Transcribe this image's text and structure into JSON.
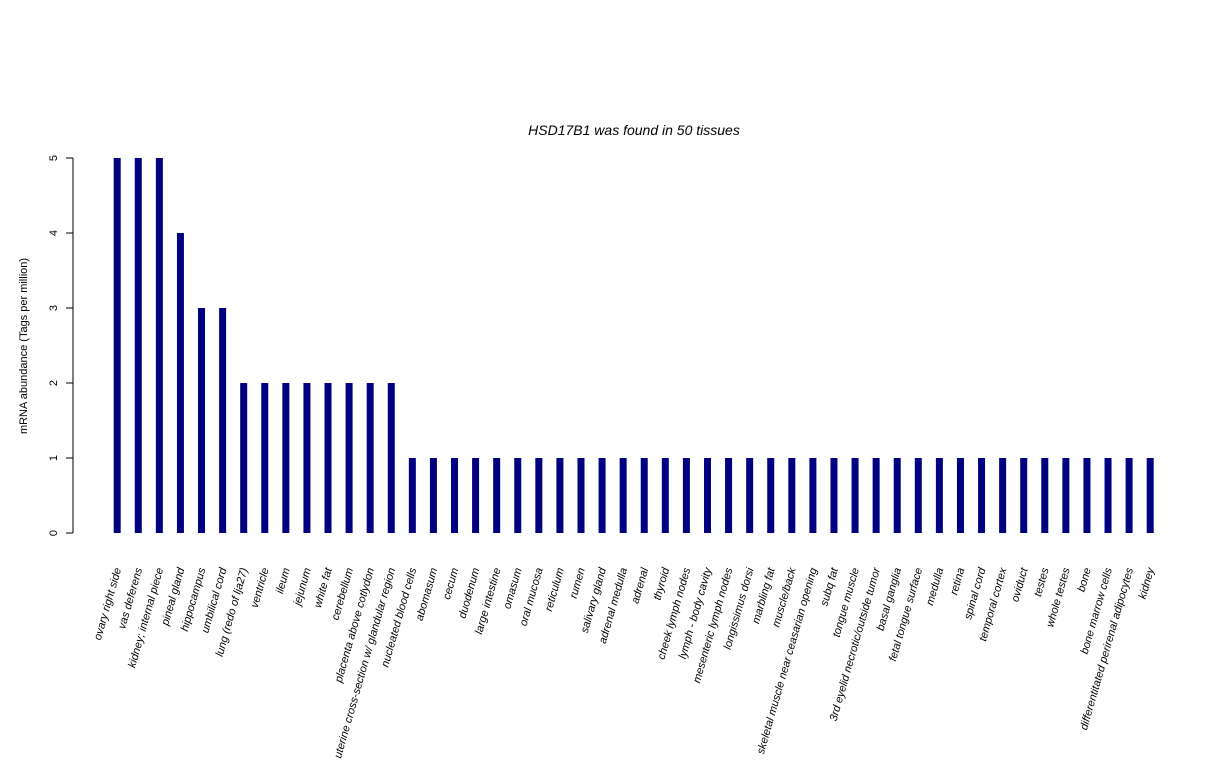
{
  "chart_data": {
    "type": "bar",
    "title": "HSD17B1  was found in  50  tissues",
    "xlabel": "",
    "ylabel": "mRNA abundance (Tags per million)",
    "ylim": [
      0,
      5
    ],
    "yticks": [
      "0",
      "1",
      "2",
      "3",
      "4",
      "5"
    ],
    "grid": false,
    "bar_color": "#000080",
    "categories": [
      "ovary right side",
      "vas deferens",
      "kidney; internal piece",
      "pineal gland",
      "hippocampus",
      "umbilical cord",
      "lung (redo of lja27)",
      "ventricle",
      "ileum",
      "jejunum",
      "white fat",
      "cerebellum",
      "placenta above cotlydon",
      "uterine cross-section w/ glandular region",
      "nucleated blood cells",
      "abomasum",
      "cecum",
      "duodenum",
      "large intestine",
      "omasum",
      "oral mucosa",
      "reticulum",
      "rumen",
      "salivary gland",
      "adrenal medulla",
      "adrenal",
      "thyroid",
      "cheek lymph nodes",
      "lymph - body cavity",
      "mesenteric lymph nodes",
      "longissimus dorsi",
      "marbling fat",
      "muscle/back",
      "skeletal muscle near ceasarian opening",
      "subq fat",
      "tongue muscle",
      "3rd eyelid necrotic/outside tumor",
      "basal ganglia",
      "fetal tongue surface",
      "medulla",
      "retina",
      "spinal cord",
      "temporal cortex",
      "oviduct",
      "testes",
      "whole testes",
      "bone",
      "bone marrow cells",
      "differentitated perirenal adipocytes",
      "kidney"
    ],
    "values": [
      5,
      5,
      5,
      4,
      3,
      3,
      2,
      2,
      2,
      2,
      2,
      2,
      2,
      2,
      1,
      1,
      1,
      1,
      1,
      1,
      1,
      1,
      1,
      1,
      1,
      1,
      1,
      1,
      1,
      1,
      1,
      1,
      1,
      1,
      1,
      1,
      1,
      1,
      1,
      1,
      1,
      1,
      1,
      1,
      1,
      1,
      1,
      1,
      1,
      1
    ]
  }
}
